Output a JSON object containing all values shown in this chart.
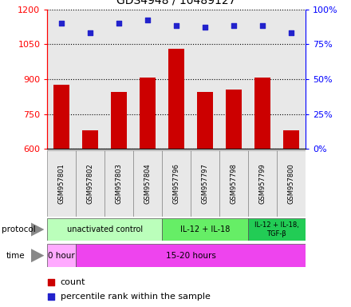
{
  "title": "GDS4948 / 10489127",
  "samples": [
    "GSM957801",
    "GSM957802",
    "GSM957803",
    "GSM957804",
    "GSM957796",
    "GSM957797",
    "GSM957798",
    "GSM957799",
    "GSM957800"
  ],
  "counts": [
    875,
    680,
    845,
    905,
    1030,
    845,
    855,
    905,
    680
  ],
  "percentile_ranks": [
    90,
    83,
    90,
    92,
    88,
    87,
    88,
    88,
    83
  ],
  "ylim_left": [
    600,
    1200
  ],
  "ylim_right": [
    0,
    100
  ],
  "yticks_left": [
    600,
    750,
    900,
    1050,
    1200
  ],
  "yticks_right": [
    0,
    25,
    50,
    75,
    100
  ],
  "bar_color": "#cc0000",
  "dot_color": "#2222cc",
  "bg_color": "#e8e8e8",
  "protocol_groups": [
    {
      "label": "unactivated control",
      "start": 0,
      "end": 4,
      "color": "#bbffbb"
    },
    {
      "label": "IL-12 + IL-18",
      "start": 4,
      "end": 7,
      "color": "#66ee66"
    },
    {
      "label": "IL-12 + IL-18,\nTGF-β",
      "start": 7,
      "end": 9,
      "color": "#22cc55"
    }
  ],
  "time_groups": [
    {
      "label": "0 hour",
      "start": 0,
      "end": 1,
      "color": "#ffaaff"
    },
    {
      "label": "15-20 hours",
      "start": 1,
      "end": 9,
      "color": "#ee44ee"
    }
  ],
  "legend_count_label": "count",
  "legend_pct_label": "percentile rank within the sample"
}
